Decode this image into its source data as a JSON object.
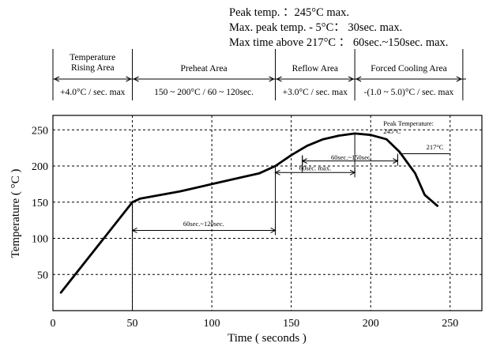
{
  "specs": {
    "peak_temp": "Peak temp. ：245°C max.",
    "max_peak": "Max. peak temp. - 5°C： 30sec. max.",
    "max_time_above": "Max time above 217°C ： 60sec.~150sec. max."
  },
  "zones": [
    {
      "name_lines": [
        "Temperature",
        "Rising Area"
      ],
      "rate": "+4.0°C / sec. max",
      "from": 0,
      "to": 50
    },
    {
      "name_lines": [
        "Preheat Area"
      ],
      "rate": "150 ~ 200°C / 60 ~ 120sec.",
      "from": 50,
      "to": 140
    },
    {
      "name_lines": [
        "Reflow Area"
      ],
      "rate": "+3.0°C  / sec. max",
      "from": 140,
      "to": 190
    },
    {
      "name_lines": [
        "Forced Cooling Area"
      ],
      "rate": "-(1.0 ~ 5.0)°C / sec. max",
      "from": 190,
      "to": 260
    }
  ],
  "chart_data": {
    "type": "line",
    "xlabel": "Time ( seconds )",
    "ylabel": "Temperature ( °C )",
    "xlim": [
      0,
      270
    ],
    "ylim": [
      0,
      270
    ],
    "xticks": [
      0,
      50,
      100,
      150,
      200,
      250
    ],
    "yticks": [
      50,
      100,
      150,
      200,
      250
    ],
    "grid": true,
    "series": [
      {
        "x": [
          5,
          50,
          55,
          80,
          100,
          120,
          130,
          140,
          150,
          160,
          170,
          180,
          190,
          200,
          210,
          218,
          223,
          228,
          234,
          242
        ],
        "y": [
          25,
          150,
          155,
          165,
          175,
          185,
          190,
          200,
          215,
          228,
          237,
          242,
          245,
          243,
          237,
          220,
          205,
          190,
          160,
          145
        ]
      }
    ],
    "annotations": [
      {
        "text": "Peak Temperature:",
        "text2": "245°C",
        "x": 208,
        "y": 256
      },
      {
        "text": "217°C",
        "x": 235,
        "y": 223,
        "ref_line": {
          "y": 217,
          "x0": 218,
          "x1": 250
        }
      },
      {
        "text": "60sec.~150sec",
        "x": 175,
        "y": 209,
        "span": {
          "x0": 157,
          "x1": 217,
          "y": 207
        }
      },
      {
        "text": "60sec. max.",
        "x": 155,
        "y": 194,
        "span": {
          "x0": 140,
          "x1": 190,
          "y": 191
        }
      },
      {
        "text": "60sec.~120sec.",
        "x": 82,
        "y": 117,
        "span": {
          "x0": 50,
          "x1": 140,
          "y": 111
        }
      }
    ]
  }
}
